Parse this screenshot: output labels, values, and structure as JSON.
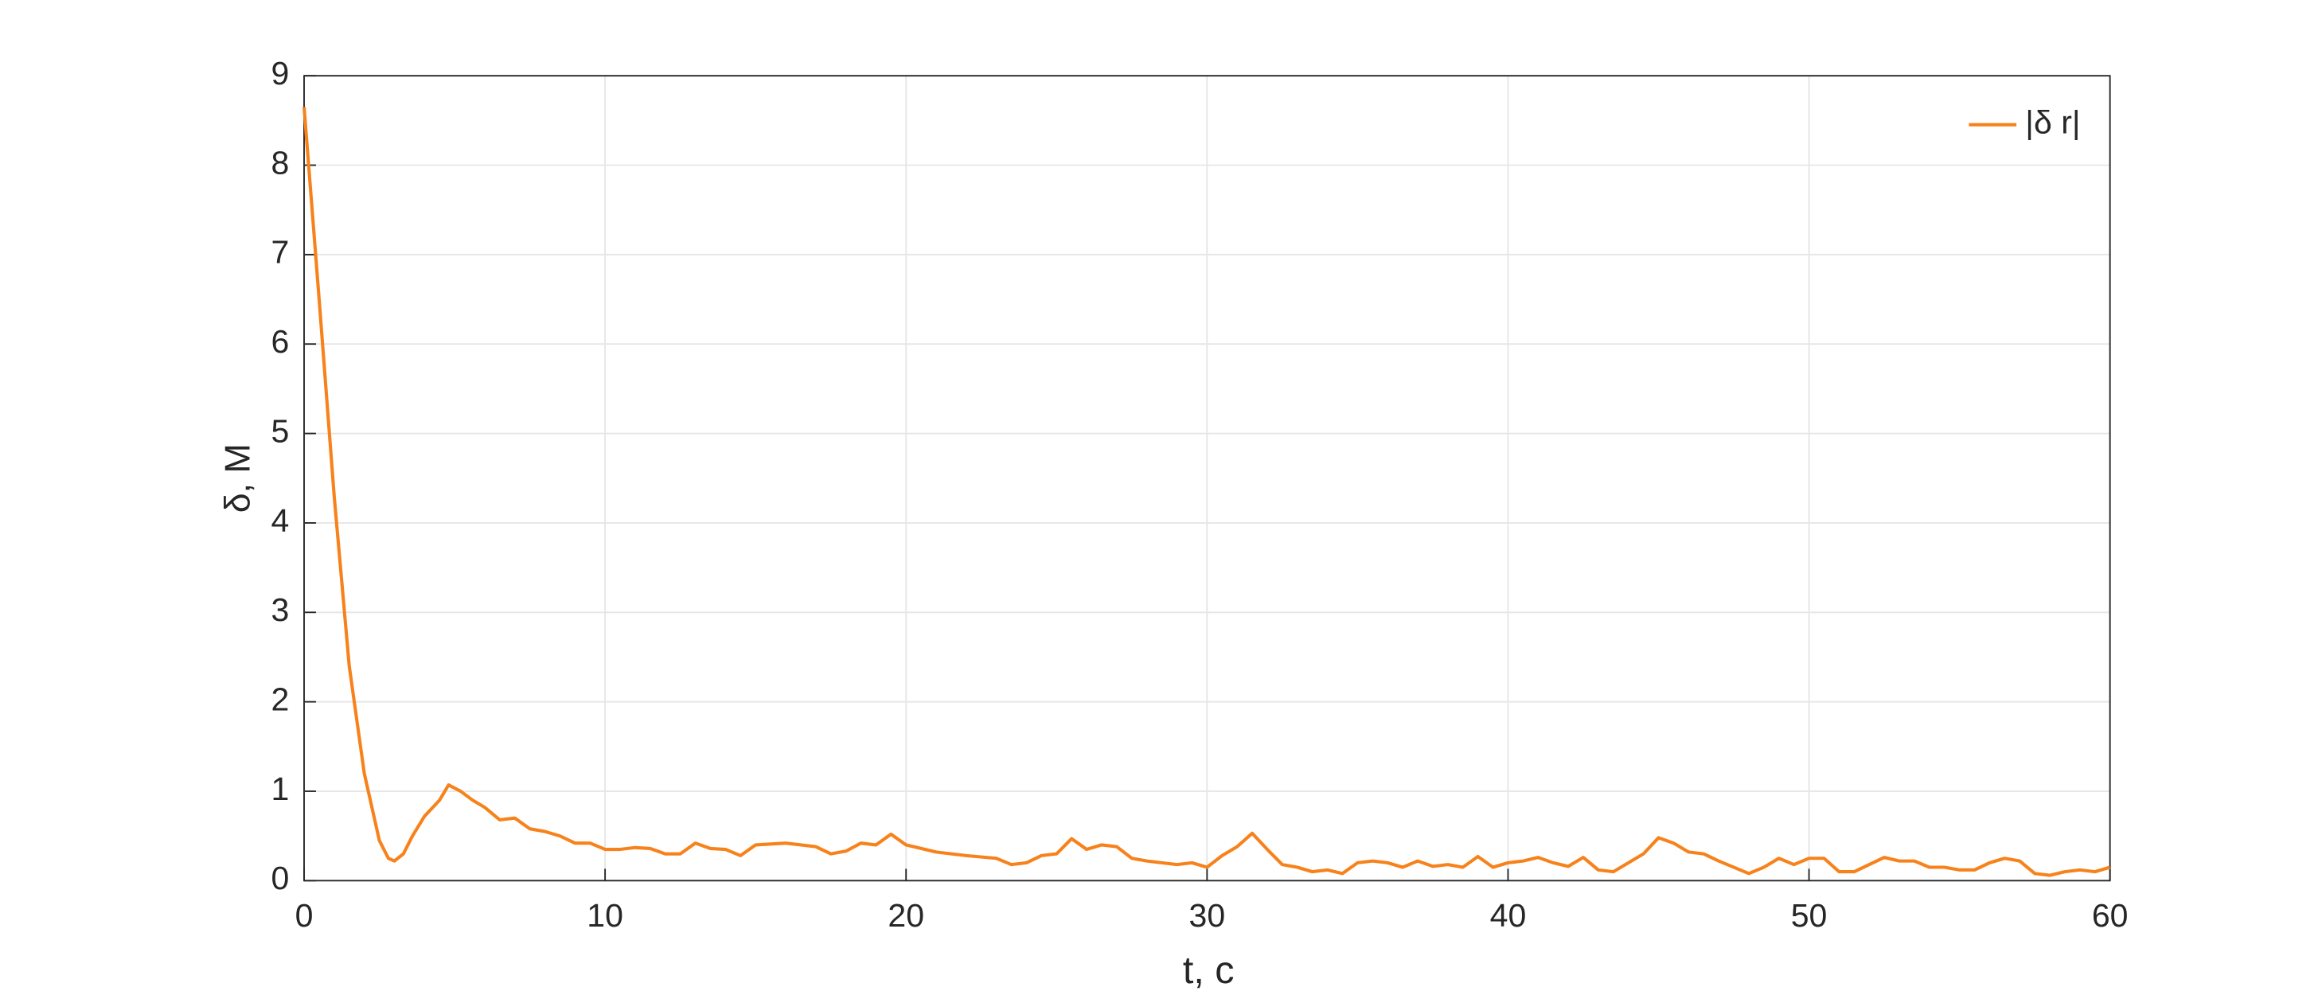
{
  "chart_data": {
    "type": "line",
    "xlabel": "t, с",
    "ylabel": "δ, М",
    "x": [
      0,
      0.5,
      1,
      1.5,
      2,
      2.5,
      2.8,
      3,
      3.3,
      3.6,
      4,
      4.5,
      4.8,
      5.2,
      5.6,
      6,
      6.5,
      7,
      7.5,
      8,
      8.5,
      9,
      9.5,
      10,
      10.5,
      11,
      11.5,
      12,
      12.5,
      13,
      13.5,
      14,
      14.5,
      15,
      16,
      17,
      17.5,
      18,
      18.5,
      19,
      19.5,
      20,
      21,
      22,
      23,
      23.5,
      24,
      24.5,
      25,
      25.5,
      26,
      26.5,
      27,
      27.5,
      28,
      28.5,
      29,
      29.5,
      30,
      30.5,
      31,
      31.5,
      32,
      32.5,
      33,
      33.5,
      34,
      34.5,
      35,
      35.5,
      36,
      36.5,
      37,
      37.5,
      38,
      38.5,
      39,
      39.5,
      40,
      40.5,
      41,
      41.5,
      42,
      42.5,
      43,
      43.5,
      44,
      44.5,
      45,
      45.5,
      46,
      46.5,
      47,
      47.5,
      48,
      48.5,
      49,
      49.5,
      50,
      50.5,
      51,
      51.5,
      52,
      52.5,
      53,
      53.5,
      54,
      54.5,
      55,
      55.5,
      56,
      56.5,
      57,
      57.5,
      58,
      58.5,
      59,
      59.5,
      60
    ],
    "series": [
      {
        "name": "|δ r|",
        "color": "#f7821b",
        "values": [
          8.65,
          6.5,
          4.3,
          2.4,
          1.2,
          0.45,
          0.25,
          0.22,
          0.3,
          0.5,
          0.72,
          0.9,
          1.07,
          1.0,
          0.9,
          0.82,
          0.68,
          0.7,
          0.58,
          0.55,
          0.5,
          0.42,
          0.42,
          0.35,
          0.35,
          0.37,
          0.36,
          0.3,
          0.3,
          0.42,
          0.36,
          0.35,
          0.28,
          0.4,
          0.42,
          0.38,
          0.3,
          0.33,
          0.42,
          0.4,
          0.52,
          0.4,
          0.32,
          0.28,
          0.25,
          0.18,
          0.2,
          0.28,
          0.3,
          0.47,
          0.35,
          0.4,
          0.38,
          0.25,
          0.22,
          0.2,
          0.18,
          0.2,
          0.15,
          0.28,
          0.38,
          0.53,
          0.35,
          0.18,
          0.15,
          0.1,
          0.12,
          0.08,
          0.2,
          0.22,
          0.2,
          0.15,
          0.22,
          0.16,
          0.18,
          0.15,
          0.27,
          0.15,
          0.2,
          0.22,
          0.26,
          0.2,
          0.16,
          0.26,
          0.12,
          0.1,
          0.2,
          0.3,
          0.48,
          0.42,
          0.32,
          0.3,
          0.22,
          0.15,
          0.08,
          0.15,
          0.25,
          0.18,
          0.25,
          0.25,
          0.1,
          0.1,
          0.18,
          0.26,
          0.22,
          0.22,
          0.15,
          0.15,
          0.12,
          0.12,
          0.2,
          0.25,
          0.22,
          0.08,
          0.06,
          0.1,
          0.12,
          0.1,
          0.15
        ]
      }
    ],
    "xlim": [
      0,
      60
    ],
    "xticks": [
      0,
      10,
      20,
      30,
      40,
      50,
      60
    ],
    "ylim": [
      0,
      9
    ],
    "yticks": [
      0,
      1,
      2,
      3,
      4,
      5,
      6,
      7,
      8,
      9
    ],
    "grid": true,
    "legend": "northeast"
  }
}
